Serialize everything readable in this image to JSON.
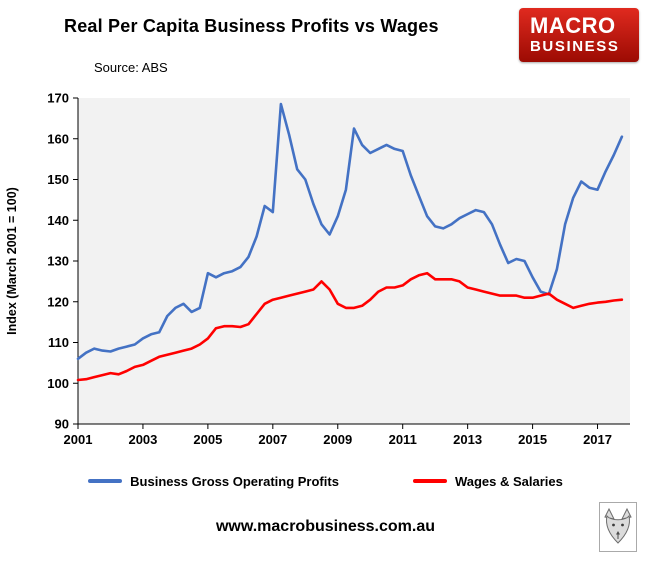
{
  "header": {
    "title": "Real Per Capita Business Profits vs Wages",
    "source": "Source: ABS"
  },
  "logo": {
    "line1": "MACRO",
    "line2": "BUSINESS",
    "bg_top": "#e02a1f",
    "bg_bottom": "#9c0b03"
  },
  "chart_data": {
    "type": "line",
    "title": "Real Per Capita Business Profits vs Wages",
    "xlabel": "",
    "ylabel": "Index (March 2001 = 100)",
    "ylim": [
      90,
      170
    ],
    "yticks": [
      90,
      100,
      110,
      120,
      130,
      140,
      150,
      160,
      170
    ],
    "xlim": [
      2001,
      2018
    ],
    "xticks": [
      2001,
      2003,
      2005,
      2007,
      2009,
      2011,
      2013,
      2015,
      2017
    ],
    "x_start": 2001.0,
    "x_step": 0.25,
    "grid": false,
    "plot_bg": "#f2f2f2",
    "legend_position": "bottom",
    "series": [
      {
        "name": "Business Gross Operating Profits",
        "color": "#4472c4",
        "values": [
          106,
          107.5,
          108.5,
          108,
          107.8,
          108.5,
          109,
          109.5,
          111,
          112,
          112.5,
          116.5,
          118.5,
          119.5,
          117.5,
          118.5,
          127,
          126,
          127,
          127.5,
          128.5,
          131,
          136,
          143.5,
          142,
          168.5,
          161,
          152.5,
          150,
          144,
          139,
          136.5,
          141,
          147.5,
          162.5,
          158.5,
          156.5,
          157.5,
          158.5,
          157.5,
          157,
          151,
          146,
          141,
          138.5,
          138,
          139,
          140.5,
          141.5,
          142.5,
          142,
          139,
          134,
          129.5,
          130.5,
          130,
          126,
          122.5,
          121.8,
          128,
          139,
          145.5,
          149.5,
          148,
          147.5,
          152,
          156,
          160.5
        ]
      },
      {
        "name": "Wages & Salaries",
        "color": "#ff0000",
        "values": [
          100.8,
          101,
          101.5,
          102,
          102.5,
          102.2,
          103,
          104,
          104.5,
          105.5,
          106.5,
          107,
          107.5,
          108,
          108.5,
          109.5,
          111,
          113.5,
          114,
          114,
          113.8,
          114.5,
          117,
          119.5,
          120.5,
          121,
          121.5,
          122,
          122.5,
          123,
          125,
          123,
          119.5,
          118.5,
          118.5,
          119,
          120.5,
          122.5,
          123.5,
          123.5,
          124,
          125.5,
          126.5,
          127,
          125.5,
          125.5,
          125.5,
          125,
          123.5,
          123,
          122.5,
          122,
          121.5,
          121.5,
          121.5,
          121,
          121,
          121.5,
          122,
          120.5,
          119.5,
          118.5,
          119,
          119.5,
          119.8,
          120,
          120.3,
          120.5
        ]
      }
    ]
  },
  "footer": {
    "url": "www.macrobusiness.com.au"
  }
}
